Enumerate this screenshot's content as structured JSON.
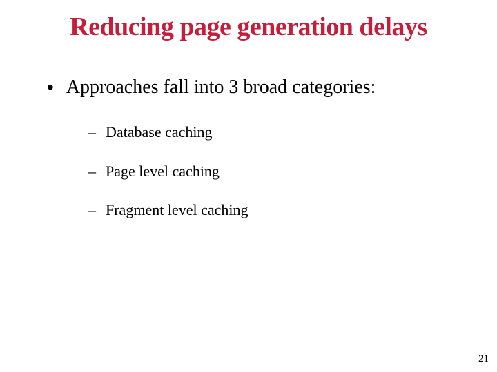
{
  "slide": {
    "title": "Reducing page generation delays",
    "title_color": "#c41e3a",
    "title_fontsize": 38,
    "title_font": "Comic Sans MS",
    "level1": {
      "bullet_char": "•",
      "text": "Approaches fall into 3 broad categories:",
      "fontsize": 28,
      "font": "Comic Sans MS",
      "color": "#000000"
    },
    "level2": [
      {
        "bullet_char": "–",
        "text": "Database caching"
      },
      {
        "bullet_char": "–",
        "text": "Page level caching"
      },
      {
        "bullet_char": "–",
        "text": "Fragment level caching"
      }
    ],
    "level2_style": {
      "fontsize": 22,
      "font": "Times New Roman",
      "color": "#000000"
    },
    "page_number": "21",
    "background_color": "#ffffff"
  }
}
